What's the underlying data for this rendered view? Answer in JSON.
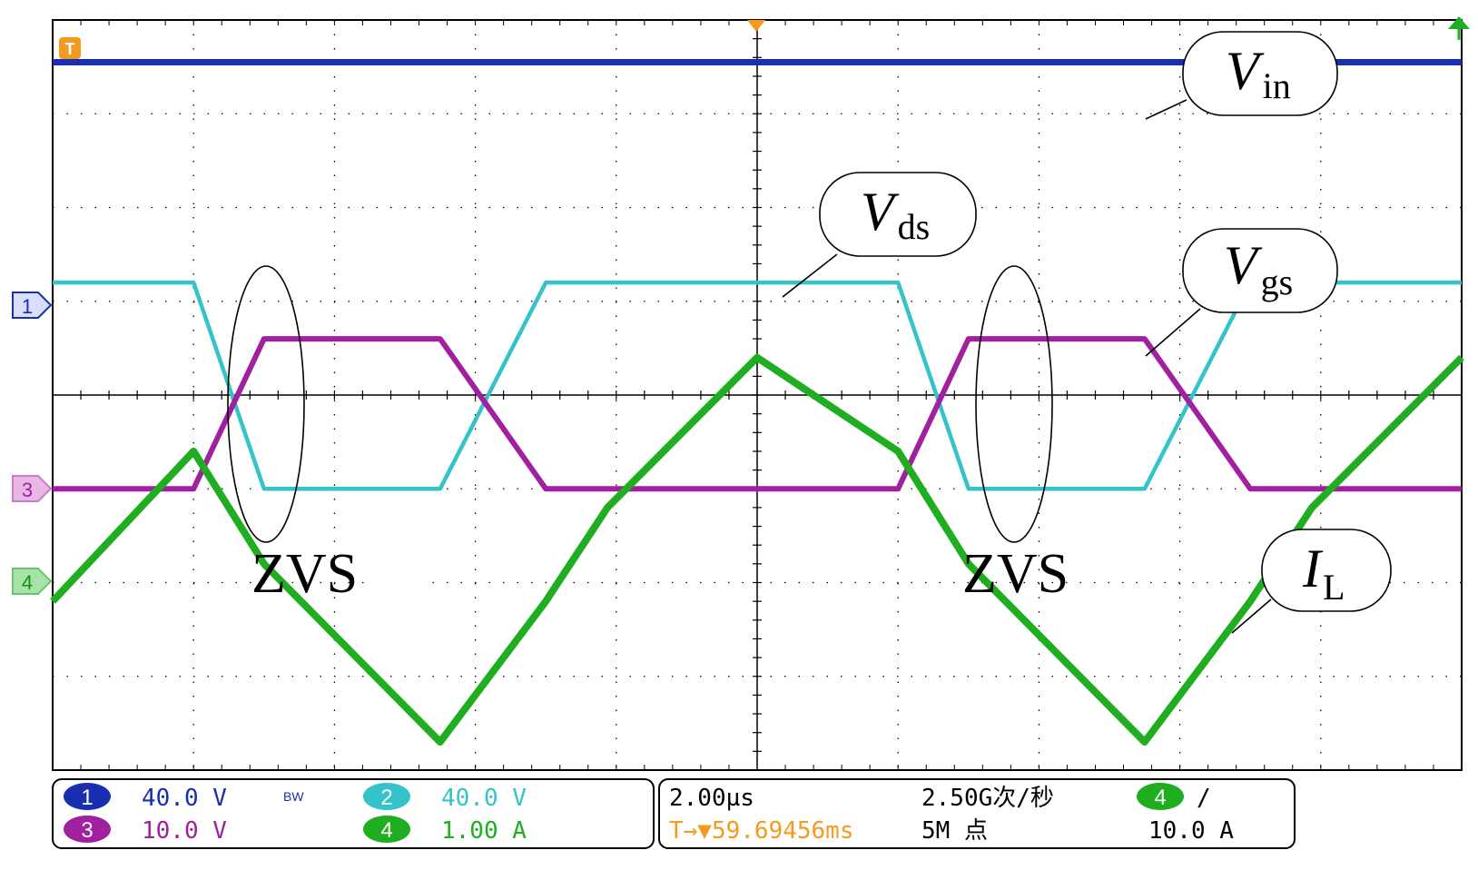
{
  "chart_data": {
    "type": "line",
    "grid": true,
    "x": [
      0,
      1.6,
      2.4,
      4.4,
      5.6,
      6.3,
      8,
      9.6,
      10.4,
      12.4,
      13.6,
      14.3,
      16
    ],
    "series": [
      {
        "name": "V",
        "subscript": "in",
        "values": [
          3.55,
          3.55,
          3.55,
          3.55,
          3.55,
          3.55,
          3.55,
          3.55,
          3.55,
          3.55,
          3.55,
          3.55,
          3.55
        ]
      },
      {
        "name": "V",
        "subscript": "ds",
        "values": [
          1.2,
          1.2,
          -1.0,
          -1.0,
          1.2,
          1.2,
          1.2,
          1.2,
          -1.0,
          -1.0,
          1.2,
          1.2,
          1.2
        ]
      },
      {
        "name": "V",
        "subscript": "gs",
        "values": [
          -1.0,
          -1.0,
          0.6,
          0.6,
          -1.0,
          -1.0,
          -1.0,
          -1.0,
          0.6,
          0.6,
          -1.0,
          -1.0,
          -1.0
        ]
      },
      {
        "name": "I",
        "subscript": "L",
        "values": [
          -2.2,
          -0.6,
          -1.8,
          -3.7,
          -2.2,
          -1.2,
          0.4,
          -0.6,
          -1.8,
          -3.7,
          -2.2,
          -1.2,
          0.4
        ]
      }
    ],
    "annotations": [
      "ZVS",
      "ZVS"
    ]
  },
  "markers": {
    "trigger_top": "T",
    "ch1": "1",
    "ch3": "3",
    "ch4": "4"
  },
  "status_bar": {
    "ch1": {
      "num": "1",
      "scale": "40.0 V"
    },
    "bw": "BW",
    "ch2": {
      "num": "2",
      "scale": "40.0 V"
    },
    "ch3": {
      "num": "3",
      "scale": "10.0 V"
    },
    "ch4": {
      "num": "4",
      "scale": "1.00 A"
    },
    "timebase": "2.00µs",
    "trigger_pos": "T→▼59.69456ms",
    "sample_rate": "2.50G次/秒",
    "record_length": "5M 点",
    "trig_channel": "4",
    "trig_slope": "/",
    "trig_level": "10.0 A"
  },
  "colors": {
    "ch1": "#1a2fb0",
    "ch2": "#33c3c8",
    "ch3": "#a020a0",
    "ch4": "#1fae1f",
    "trigger": "#f59a1e",
    "grid": "#000000"
  }
}
